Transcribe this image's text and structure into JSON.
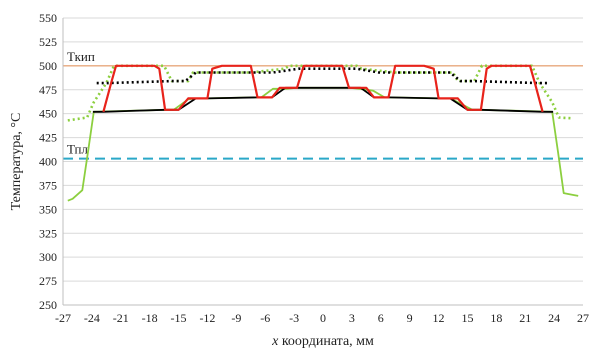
{
  "chart_data": {
    "type": "line",
    "title": "",
    "xlabel": "x координата, мм",
    "xlabel_italic": "x",
    "xlabel_rest": " координата, мм",
    "ylabel": "Температура, °С",
    "xlim": [
      -27,
      27
    ],
    "ylim": [
      250,
      550
    ],
    "xticks": [
      -27,
      -24,
      -21,
      -18,
      -15,
      -12,
      -9,
      -6,
      -3,
      0,
      3,
      6,
      9,
      12,
      15,
      18,
      21,
      24,
      27
    ],
    "yticks": [
      250,
      275,
      300,
      325,
      350,
      375,
      400,
      425,
      450,
      475,
      500,
      525,
      550
    ],
    "grid": true,
    "reference_lines": [
      {
        "label": "Ткип",
        "y": 500,
        "color": "#e8a87c",
        "style": "solid"
      },
      {
        "label": "Тпл",
        "y": 403,
        "color": "#2aa8c8",
        "style": "dashed"
      }
    ],
    "series": [
      {
        "color": "#8ccf3f",
        "style": "dotted",
        "x": [
          -26.5,
          -24.5,
          -23.8,
          -22.5,
          -21.7,
          -16.5,
          -15.7,
          -14.0,
          -13.5,
          -8.5,
          -7.5,
          -4.0,
          -3.5,
          3.5,
          4.0,
          7.5,
          8.5,
          13.5,
          14.0,
          15.7,
          16.5,
          21.7,
          22.5,
          23.8,
          24.5,
          26.0
        ],
        "y": [
          443,
          446,
          462,
          482,
          500,
          500,
          484,
          484,
          493,
          493,
          493,
          497,
          500,
          500,
          497,
          493,
          493,
          493,
          484,
          484,
          500,
          500,
          482,
          462,
          446,
          445
        ]
      },
      {
        "color": "#000000",
        "style": "dotted",
        "x": [
          -23.5,
          -22.5,
          -15.7,
          -14.3,
          -13.2,
          -12.2,
          -6.8,
          -5.2,
          -2.5,
          -1.5,
          2.5,
          3.5,
          5.8,
          6.8,
          12.2,
          13.2,
          14.3,
          15.7,
          22.5,
          23.5
        ],
        "y": [
          482,
          482,
          484,
          484,
          493,
          493,
          493,
          493,
          497,
          497,
          497,
          497,
          493,
          493,
          493,
          493,
          484,
          484,
          482,
          482
        ]
      },
      {
        "color": "#8ccf3f",
        "style": "solid",
        "x": [
          -26.5,
          -26.0,
          -25.0,
          -24.4,
          -23.8,
          -16.4,
          -15.5,
          -14.0,
          -13.2,
          -12.2,
          -7.0,
          -6.4,
          -5.2,
          -3.8,
          -2.8,
          2.8,
          3.8,
          5.2,
          6.4,
          7.0,
          12.2,
          13.2,
          14.0,
          15.5,
          16.4,
          23.8,
          24.4,
          25.0,
          26.0,
          26.5
        ],
        "y": [
          359,
          361,
          370,
          410,
          452,
          454,
          454,
          465,
          466,
          466,
          467,
          467,
          476,
          476,
          477,
          477,
          476,
          474,
          467,
          467,
          466,
          466,
          462,
          454,
          454,
          452,
          410,
          367,
          365,
          364
        ]
      },
      {
        "color": "#000000",
        "style": "solid",
        "x": [
          -23.9,
          -22.8,
          -16.4,
          -15.0,
          -13.2,
          -12.0,
          -6.8,
          -5.3,
          -3.9,
          -2.7,
          2.7,
          3.9,
          5.3,
          6.8,
          12.0,
          13.2,
          15.0,
          16.4,
          22.8,
          23.9
        ],
        "y": [
          452,
          452,
          454,
          454,
          466,
          466,
          467,
          467,
          477,
          477,
          477,
          477,
          467,
          467,
          466,
          466,
          454,
          454,
          452,
          452
        ]
      },
      {
        "color": "#e8231b",
        "style": "solid",
        "x": [
          -22.8,
          -22.0,
          -21.5,
          -17.5,
          -17.0,
          -16.4,
          -15.0,
          -14.0,
          -13.2,
          -12.0,
          -11.5,
          -10.5,
          -7.5,
          -6.8,
          -5.3,
          -4.5,
          -3.9,
          -2.7,
          -2.0,
          2.0,
          2.7,
          3.9,
          4.5,
          5.3,
          6.8,
          7.5,
          10.5,
          11.5,
          12.0,
          13.2,
          14.0,
          15.0,
          16.4,
          17.0,
          17.5,
          21.5,
          22.0,
          22.8
        ],
        "y": [
          452,
          482,
          500,
          500,
          497,
          454,
          454,
          466,
          466,
          466,
          497,
          500,
          500,
          467,
          467,
          477,
          477,
          477,
          500,
          500,
          477,
          477,
          477,
          467,
          467,
          500,
          500,
          497,
          466,
          466,
          466,
          454,
          454,
          497,
          500,
          500,
          482,
          452
        ]
      }
    ]
  }
}
